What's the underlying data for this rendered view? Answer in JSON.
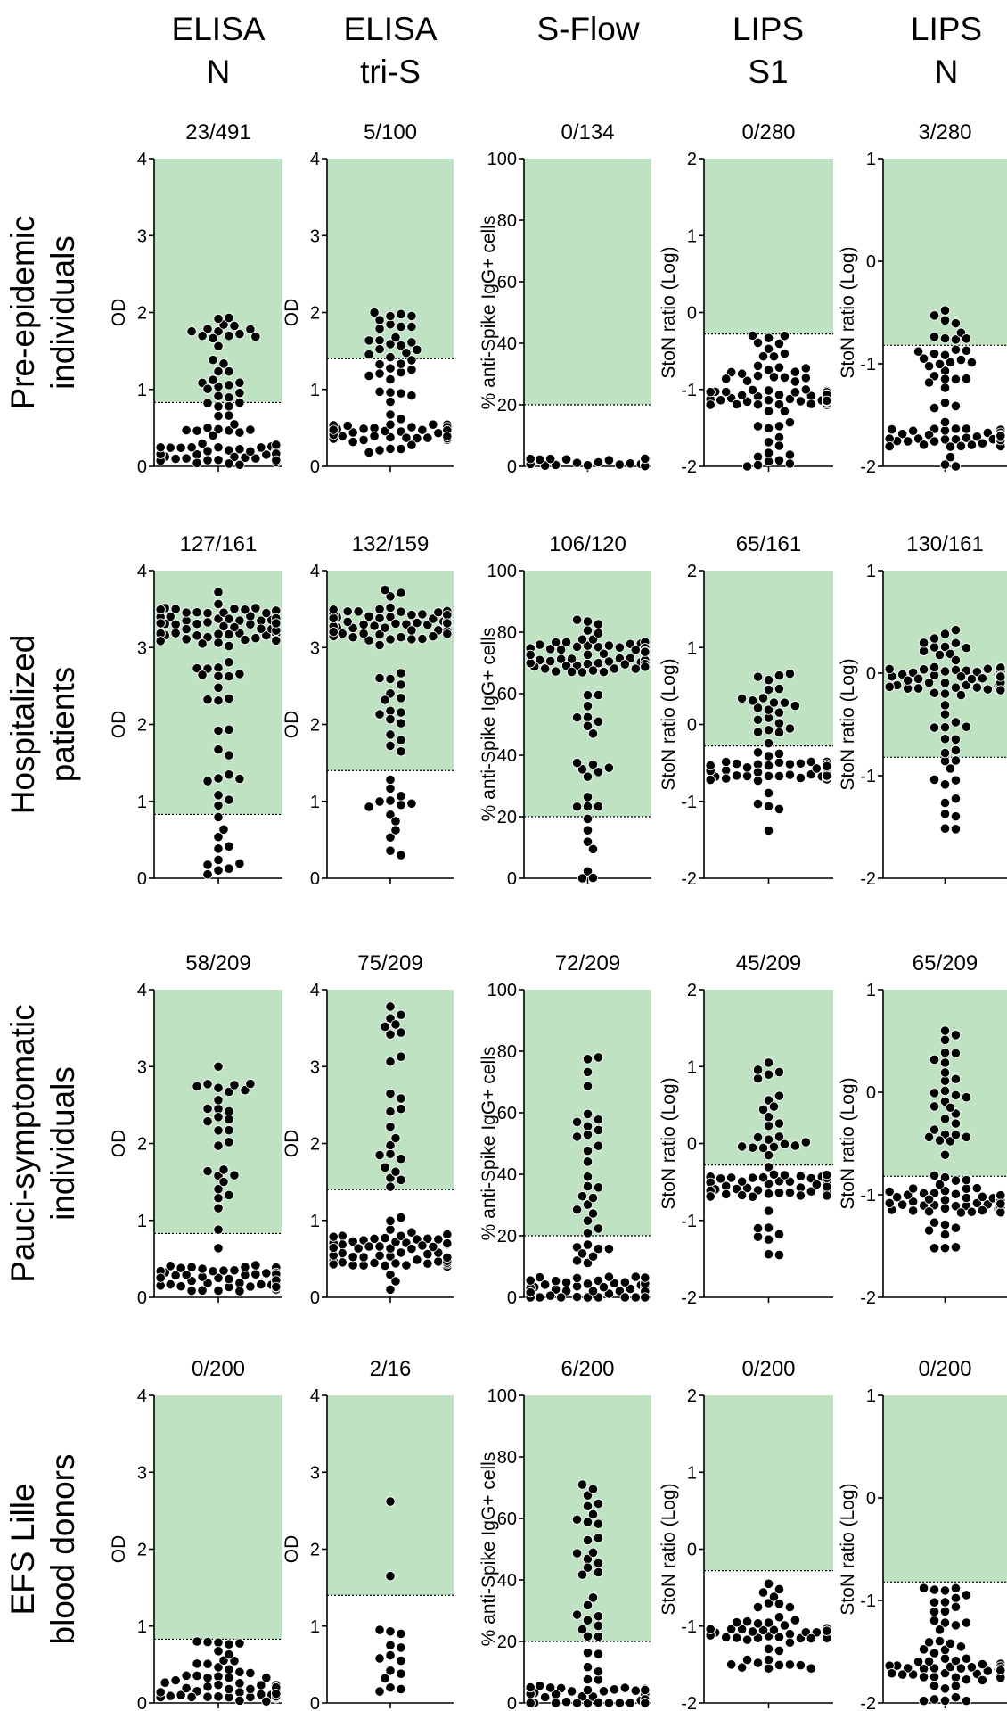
{
  "colors": {
    "positive_zone": "#bfe3c2",
    "dot_fill": "#000000",
    "dot_stroke": "#ffffff",
    "axis": "#000000"
  },
  "chart_data": {
    "type": "scatter",
    "subtype": "beeswarm-panel-grid",
    "columns": [
      {
        "id": "elisa_n",
        "line1": "ELISA",
        "line2": "N",
        "ylabel": "OD",
        "ylim": [
          0,
          4
        ],
        "yticks": [
          "0",
          "1",
          "2",
          "3",
          "4"
        ],
        "cutoff": 0.83
      },
      {
        "id": "elisa_tris",
        "line1": "ELISA",
        "line2": "tri-S",
        "ylabel": "OD",
        "ylim": [
          0,
          4
        ],
        "yticks": [
          "0",
          "1",
          "2",
          "3",
          "4"
        ],
        "cutoff": 1.4
      },
      {
        "id": "sflow",
        "line1": "S-Flow",
        "line2": "",
        "ylabel": "% anti-Spike IgG+ cells",
        "ylim": [
          0,
          100
        ],
        "yticks": [
          "0",
          "20",
          "40",
          "60",
          "80",
          "100"
        ],
        "cutoff": 20
      },
      {
        "id": "lips_s1",
        "line1": "LIPS",
        "line2": "S1",
        "ylabel": "StoN ratio (Log)",
        "ylim": [
          -2,
          2
        ],
        "yticks": [
          "-2",
          "-1",
          "0",
          "1",
          "2"
        ],
        "cutoff": -0.28
      },
      {
        "id": "lips_n",
        "line1": "LIPS",
        "line2": "N",
        "ylabel": "StoN ratio (Log)",
        "ylim": [
          -2,
          1
        ],
        "yticks": [
          "-2",
          "-1",
          "0",
          "1"
        ],
        "cutoff": -0.82
      }
    ],
    "rows": [
      {
        "line1": "Pre-epidemic",
        "line2": "individuals",
        "counts": [
          "23/491",
          "5/100",
          "0/134",
          "0/280",
          "3/280"
        ],
        "distributions": [
          {
            "min": 0.02,
            "max": 1.93,
            "median": 0.15
          },
          {
            "min": 0.18,
            "max": 2.0,
            "median": 0.45
          },
          {
            "min": 0.1,
            "max": 2.5,
            "median": 0.8
          },
          {
            "min": -2.0,
            "max": -0.3,
            "median": -1.1
          },
          {
            "min": -2.0,
            "max": -0.48,
            "median": -1.72
          }
        ]
      },
      {
        "line1": "Hospitalized",
        "line2": "patients",
        "counts": [
          "127/161",
          "132/159",
          "106/120",
          "65/161",
          "130/161"
        ],
        "distributions": [
          {
            "min": 0.05,
            "max": 3.72,
            "median": 3.3
          },
          {
            "min": 0.3,
            "max": 3.75,
            "median": 3.3
          },
          {
            "min": 0.0,
            "max": 84,
            "median": 72
          },
          {
            "min": -1.38,
            "max": 0.66,
            "median": -0.6
          },
          {
            "min": -1.52,
            "max": 0.42,
            "median": -0.05
          }
        ]
      },
      {
        "line1": "Pauci-symptomatic",
        "line2": "individuals",
        "counts": [
          "58/209",
          "75/209",
          "72/209",
          "45/209",
          "65/209"
        ],
        "distributions": [
          {
            "min": 0.08,
            "max": 3.0,
            "median": 0.25
          },
          {
            "min": 0.1,
            "max": 3.78,
            "median": 0.6
          },
          {
            "min": 0.0,
            "max": 78,
            "median": 2
          },
          {
            "min": -1.45,
            "max": 1.05,
            "median": -0.55
          },
          {
            "min": -1.52,
            "max": 0.6,
            "median": -1.05
          }
        ]
      },
      {
        "line1": "EFS Lille",
        "line2": "blood donors",
        "counts": [
          "0/200",
          "2/16",
          "6/200",
          "0/200",
          "0/200"
        ],
        "distributions": [
          {
            "min": 0.02,
            "max": 0.8,
            "median": 0.12
          },
          {
            "points": [
              2.62,
              1.65,
              0.93,
              0.9,
              0.95,
              0.75,
              0.72,
              0.62,
              0.55,
              0.58,
              0.42,
              0.38,
              0.32,
              0.2,
              0.18,
              0.15
            ]
          },
          {
            "min": 0.0,
            "max": 71,
            "median": 1
          },
          {
            "min": -1.55,
            "max": -0.45,
            "median": -1.1
          },
          {
            "min": -1.98,
            "max": -0.88,
            "median": -1.7
          }
        ]
      }
    ]
  }
}
